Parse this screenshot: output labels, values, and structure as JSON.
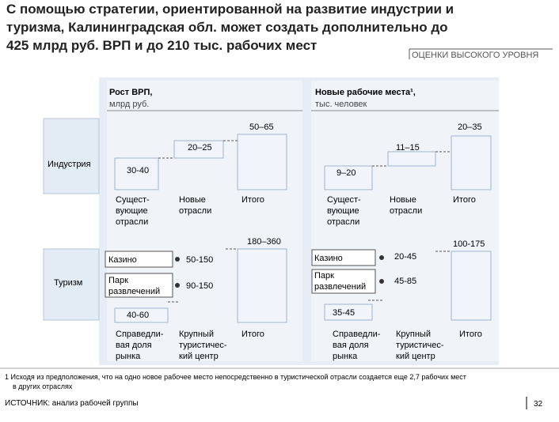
{
  "header": {
    "title": [
      "С помощью стратегии, ориентированной на развитие индустрии и",
      "туризма, Калининградская обл. может создать дополнительно до",
      "425 млрд руб. ВРП и до 210 тыс. рабочих мест"
    ],
    "stamp": "ОЦЕНКИ ВЫСОКОГО УРОВНЯ"
  },
  "rows": [
    "Индустрия",
    "Туризм"
  ],
  "panels": [
    {
      "title": "Рост ВРП,",
      "unit": "млрд руб."
    },
    {
      "title": "Новые рабочие места¹,",
      "unit": "тыс. человек"
    }
  ],
  "industry": {
    "columns": [
      [
        "Сущест-",
        "вующие",
        "отрасли"
      ],
      [
        "Новые",
        "отрасли"
      ],
      [
        "Итого"
      ]
    ],
    "gdp": [
      "30-40",
      "20–25",
      "50–65"
    ],
    "jobs": [
      "9–20",
      "11–15",
      "20–35"
    ]
  },
  "tourism": {
    "columns": [
      [
        "Справедли-",
        "вая доля",
        "рынка"
      ],
      [
        "Крупный",
        "туристичес-",
        "кий центр"
      ],
      [
        "Итого"
      ]
    ],
    "items": [
      "Казино",
      [
        "Парк",
        "развлечений"
      ]
    ],
    "gdp": {
      "base": "40-60",
      "items": [
        "50-150",
        "90-150"
      ],
      "total": "180–360"
    },
    "jobs": {
      "base": "35-45",
      "items": [
        "20-45",
        "45-85"
      ],
      "total": "100-175"
    }
  },
  "footnote": [
    "1 Исходя из предположения, что на одно новое рабочее место непосредственно в туристической отрасли создается еще 2,7 рабочих мест",
    "в других отраслях"
  ],
  "source": "ИСТОЧНИК: анализ рабочей группы",
  "page": "32"
}
